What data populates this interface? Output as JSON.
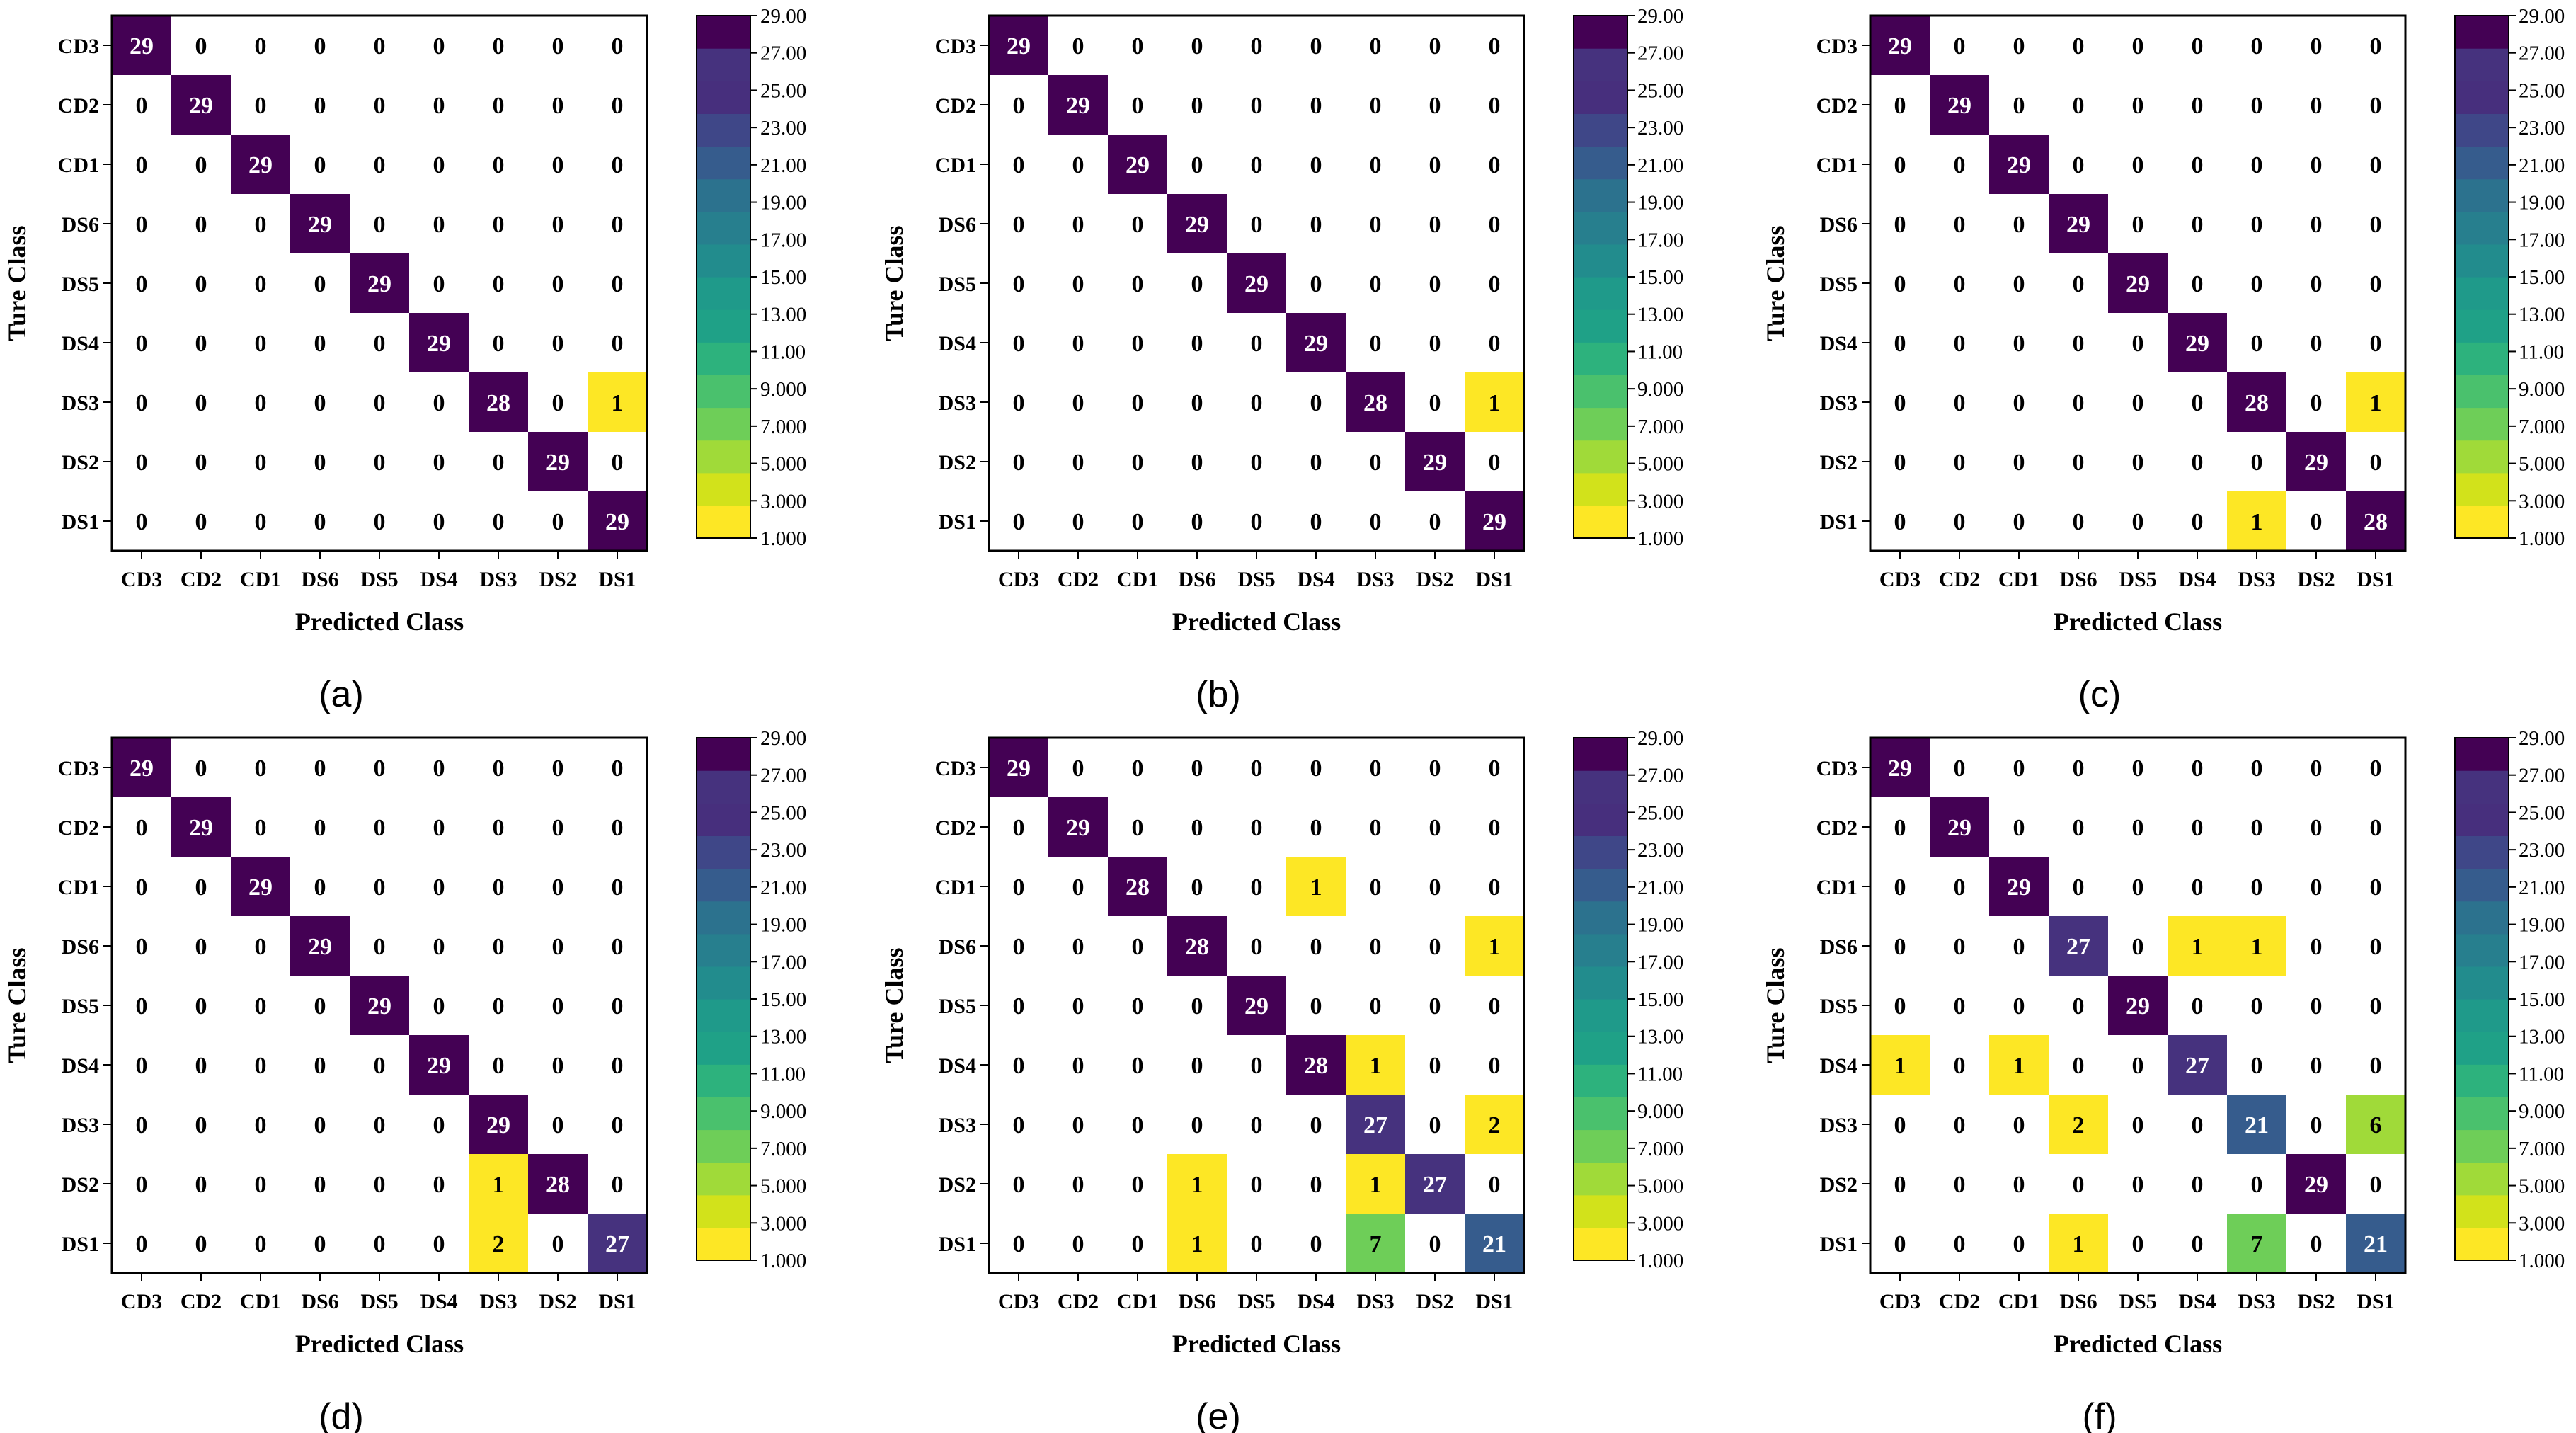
{
  "chart_data": {
    "type": "heatmap",
    "figure_kind": "confusion_matrix_grid",
    "classes": [
      "CD3",
      "CD2",
      "CD1",
      "DS6",
      "DS5",
      "DS4",
      "DS3",
      "DS2",
      "DS1"
    ],
    "xlabel": "Predicted Class",
    "ylabel": "Ture Class",
    "colorbar": {
      "min": 1,
      "max": 29,
      "tick_labels": [
        "29.00",
        "27.00",
        "25.00",
        "23.00",
        "21.00",
        "19.00",
        "17.00",
        "15.00",
        "13.00",
        "11.00",
        "9.000",
        "7.000",
        "5.000",
        "3.000",
        "1.000"
      ],
      "colors": [
        "#fde725",
        "#d2e21b",
        "#a0da39",
        "#6ece58",
        "#4ac16d",
        "#2db27d",
        "#1fa187",
        "#1f9a8a",
        "#228c8d",
        "#277f8e",
        "#2c728e",
        "#365c8d",
        "#3f4788",
        "#472f7d",
        "#46327e",
        "#440154"
      ]
    },
    "panels": [
      {
        "label": "(a)",
        "matrix": [
          [
            29,
            0,
            0,
            0,
            0,
            0,
            0,
            0,
            0
          ],
          [
            0,
            29,
            0,
            0,
            0,
            0,
            0,
            0,
            0
          ],
          [
            0,
            0,
            29,
            0,
            0,
            0,
            0,
            0,
            0
          ],
          [
            0,
            0,
            0,
            29,
            0,
            0,
            0,
            0,
            0
          ],
          [
            0,
            0,
            0,
            0,
            29,
            0,
            0,
            0,
            0
          ],
          [
            0,
            0,
            0,
            0,
            0,
            29,
            0,
            0,
            0
          ],
          [
            0,
            0,
            0,
            0,
            0,
            0,
            28,
            0,
            1
          ],
          [
            0,
            0,
            0,
            0,
            0,
            0,
            0,
            29,
            0
          ],
          [
            0,
            0,
            0,
            0,
            0,
            0,
            0,
            0,
            29
          ]
        ]
      },
      {
        "label": "(b)",
        "matrix": [
          [
            29,
            0,
            0,
            0,
            0,
            0,
            0,
            0,
            0
          ],
          [
            0,
            29,
            0,
            0,
            0,
            0,
            0,
            0,
            0
          ],
          [
            0,
            0,
            29,
            0,
            0,
            0,
            0,
            0,
            0
          ],
          [
            0,
            0,
            0,
            29,
            0,
            0,
            0,
            0,
            0
          ],
          [
            0,
            0,
            0,
            0,
            29,
            0,
            0,
            0,
            0
          ],
          [
            0,
            0,
            0,
            0,
            0,
            29,
            0,
            0,
            0
          ],
          [
            0,
            0,
            0,
            0,
            0,
            0,
            28,
            0,
            1
          ],
          [
            0,
            0,
            0,
            0,
            0,
            0,
            0,
            29,
            0
          ],
          [
            0,
            0,
            0,
            0,
            0,
            0,
            0,
            0,
            29
          ]
        ]
      },
      {
        "label": "(c)",
        "matrix": [
          [
            29,
            0,
            0,
            0,
            0,
            0,
            0,
            0,
            0
          ],
          [
            0,
            29,
            0,
            0,
            0,
            0,
            0,
            0,
            0
          ],
          [
            0,
            0,
            29,
            0,
            0,
            0,
            0,
            0,
            0
          ],
          [
            0,
            0,
            0,
            29,
            0,
            0,
            0,
            0,
            0
          ],
          [
            0,
            0,
            0,
            0,
            29,
            0,
            0,
            0,
            0
          ],
          [
            0,
            0,
            0,
            0,
            0,
            29,
            0,
            0,
            0
          ],
          [
            0,
            0,
            0,
            0,
            0,
            0,
            28,
            0,
            1
          ],
          [
            0,
            0,
            0,
            0,
            0,
            0,
            0,
            29,
            0
          ],
          [
            0,
            0,
            0,
            0,
            0,
            0,
            1,
            0,
            28
          ]
        ]
      },
      {
        "label": "(d)",
        "matrix": [
          [
            29,
            0,
            0,
            0,
            0,
            0,
            0,
            0,
            0
          ],
          [
            0,
            29,
            0,
            0,
            0,
            0,
            0,
            0,
            0
          ],
          [
            0,
            0,
            29,
            0,
            0,
            0,
            0,
            0,
            0
          ],
          [
            0,
            0,
            0,
            29,
            0,
            0,
            0,
            0,
            0
          ],
          [
            0,
            0,
            0,
            0,
            29,
            0,
            0,
            0,
            0
          ],
          [
            0,
            0,
            0,
            0,
            0,
            29,
            0,
            0,
            0
          ],
          [
            0,
            0,
            0,
            0,
            0,
            0,
            29,
            0,
            0
          ],
          [
            0,
            0,
            0,
            0,
            0,
            0,
            1,
            28,
            0
          ],
          [
            0,
            0,
            0,
            0,
            0,
            0,
            2,
            0,
            27
          ]
        ]
      },
      {
        "label": "(e)",
        "matrix": [
          [
            29,
            0,
            0,
            0,
            0,
            0,
            0,
            0,
            0
          ],
          [
            0,
            29,
            0,
            0,
            0,
            0,
            0,
            0,
            0
          ],
          [
            0,
            0,
            28,
            0,
            0,
            1,
            0,
            0,
            0
          ],
          [
            0,
            0,
            0,
            28,
            0,
            0,
            0,
            0,
            1
          ],
          [
            0,
            0,
            0,
            0,
            29,
            0,
            0,
            0,
            0
          ],
          [
            0,
            0,
            0,
            0,
            0,
            28,
            1,
            0,
            0
          ],
          [
            0,
            0,
            0,
            0,
            0,
            0,
            27,
            0,
            2
          ],
          [
            0,
            0,
            0,
            1,
            0,
            0,
            1,
            27,
            0
          ],
          [
            0,
            0,
            0,
            1,
            0,
            0,
            7,
            0,
            21
          ]
        ]
      },
      {
        "label": "(f)",
        "matrix": [
          [
            29,
            0,
            0,
            0,
            0,
            0,
            0,
            0,
            0
          ],
          [
            0,
            29,
            0,
            0,
            0,
            0,
            0,
            0,
            0
          ],
          [
            0,
            0,
            29,
            0,
            0,
            0,
            0,
            0,
            0
          ],
          [
            0,
            0,
            0,
            27,
            0,
            1,
            1,
            0,
            0
          ],
          [
            0,
            0,
            0,
            0,
            29,
            0,
            0,
            0,
            0
          ],
          [
            1,
            0,
            1,
            0,
            0,
            27,
            0,
            0,
            0
          ],
          [
            0,
            0,
            0,
            2,
            0,
            0,
            21,
            0,
            6
          ],
          [
            0,
            0,
            0,
            0,
            0,
            0,
            0,
            29,
            0
          ],
          [
            0,
            0,
            0,
            1,
            0,
            0,
            7,
            0,
            21
          ]
        ]
      }
    ]
  }
}
